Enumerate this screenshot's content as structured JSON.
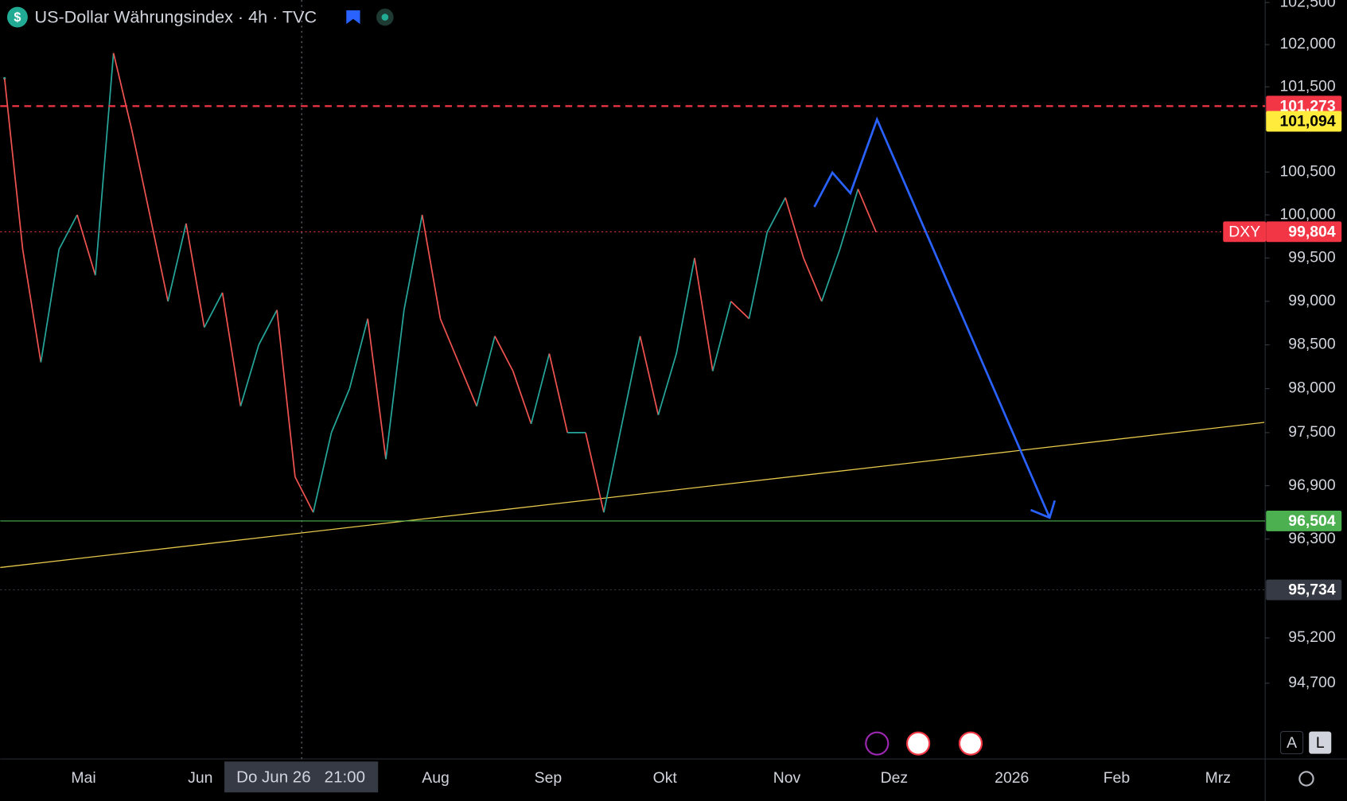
{
  "chart_data": {
    "type": "line",
    "title": "US-Dollar Währungsindex · 4h · TVC",
    "log_scale": true,
    "ylim": [
      93.87,
      102.53
    ],
    "yticks": [
      {
        "value": 102.5,
        "label": "102,500"
      },
      {
        "value": 102,
        "label": "102,000"
      },
      {
        "value": 101.5,
        "label": "101,500"
      },
      {
        "value": 100.5,
        "label": "100,500"
      },
      {
        "value": 100,
        "label": "100,000"
      },
      {
        "value": 99.5,
        "label": "99,500"
      },
      {
        "value": 99,
        "label": "99,000"
      },
      {
        "value": 98.5,
        "label": "98,500"
      },
      {
        "value": 98,
        "label": "98,000"
      },
      {
        "value": 97.5,
        "label": "97,500"
      },
      {
        "value": 96.9,
        "label": "96,900"
      },
      {
        "value": 96.3,
        "label": "96,300"
      },
      {
        "value": 95.2,
        "label": "95,200"
      },
      {
        "value": 94.7,
        "label": "94,700"
      }
    ],
    "x_labels": [
      "Mai",
      "Jun",
      "Aug",
      "Sep",
      "Okt",
      "Nov",
      "Dez",
      "2026",
      "Feb",
      "Mrz"
    ],
    "crosshair_label": "Do Jun 26   21:00",
    "up_color": "#26a69a",
    "down_color": "#ef5350",
    "series": [
      {
        "values": [
          101.6,
          99.6,
          98.3,
          99.6,
          100.0,
          99.3,
          101.9,
          101.0,
          100.0,
          99.0,
          99.9,
          98.7,
          99.1,
          97.8,
          98.5,
          98.9,
          97.0,
          96.6,
          97.5,
          98.0,
          98.8,
          97.2,
          98.9,
          100.0,
          98.8,
          98.3,
          97.8,
          98.6,
          98.2,
          97.6,
          98.4,
          97.5,
          97.5,
          96.6,
          97.6,
          98.6,
          97.7,
          98.4,
          99.5,
          98.2,
          99.0,
          98.8,
          99.8,
          100.2,
          99.5,
          99.0,
          99.6,
          100.3,
          99.8
        ]
      }
    ],
    "price_lines": [
      {
        "value": 101.273,
        "label": "101,273",
        "color": "#f23645",
        "style": "dashed"
      },
      {
        "value": 101.094,
        "label": "101,094",
        "color": "#ffeb3b",
        "style": "none"
      },
      {
        "name": "DXY",
        "value": 99.804,
        "label": "99,804",
        "color": "#f23645",
        "style": "dotted"
      },
      {
        "value": 96.504,
        "label": "96,504",
        "color": "#4caf50",
        "style": "solid"
      },
      {
        "value": 95.734,
        "label": "95,734",
        "color": "#363a45",
        "style": "dotted"
      }
    ]
  }
}
